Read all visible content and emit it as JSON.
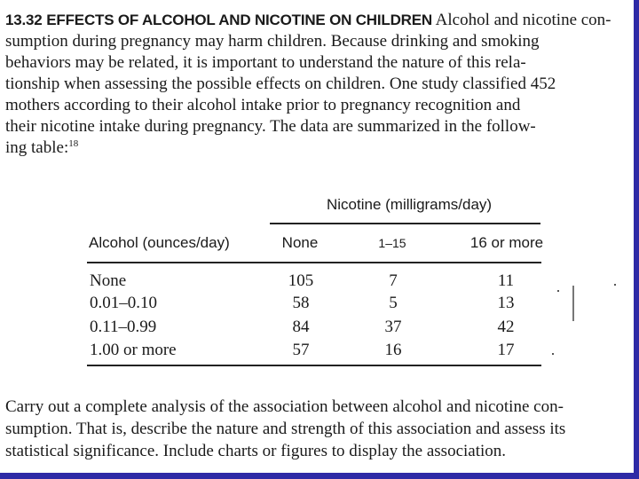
{
  "problem": {
    "number": "13.32",
    "heading": "EFFECTS OF ALCOHOL AND NICOTINE ON CHILDREN",
    "lines": [
      "Alcohol and nicotine con-",
      "sumption during pregnancy may harm children. Because drinking and smoking",
      "behaviors may be related, it is important to understand the nature of this rela-",
      "tionship when assessing the possible effects on children. One study classified 452",
      "mothers according to their alcohol intake prior to pregnancy recognition and",
      "their nicotine intake during pregnancy. The data are summarized in the follow-",
      "ing table:"
    ],
    "footnote": "18"
  },
  "table": {
    "column_group": "Nicotine (milligrams/day)",
    "row_header": "Alcohol (ounces/day)",
    "columns": [
      "None",
      "1–15",
      "16 or more"
    ],
    "rows": [
      {
        "label": "None",
        "values": [
          "105",
          "7",
          "11"
        ]
      },
      {
        "label": "0.01–0.10",
        "values": [
          "58",
          "5",
          "13"
        ]
      },
      {
        "label": "0.11–0.99",
        "values": [
          "84",
          "37",
          "42"
        ]
      },
      {
        "label": "1.00 or more",
        "values": [
          "57",
          "16",
          "17"
        ]
      }
    ]
  },
  "closing": {
    "lines": [
      "Carry out a complete analysis of the association between alcohol and nicotine con-",
      "sumption. That is, describe the nature and strength of this association and assess its",
      "statistical significance. Include charts or figures to display the association."
    ]
  },
  "colors": {
    "frame": "#2e2aa6",
    "paper": "#ffffff",
    "ink": "#1a1a1a"
  }
}
